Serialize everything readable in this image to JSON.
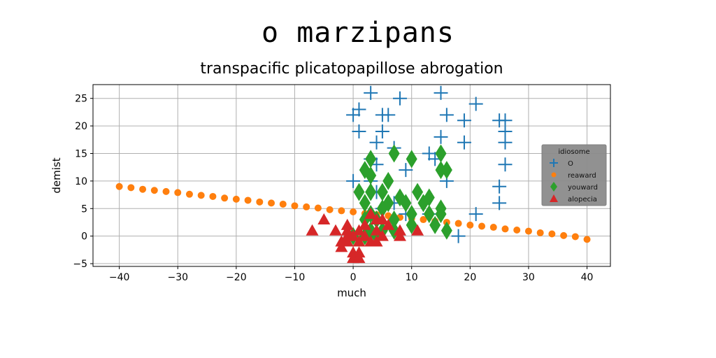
{
  "chart_data": {
    "type": "scatter",
    "suptitle": "o marzipans",
    "title": "transpacific plicatopapillose abrogation",
    "xlabel": "much",
    "ylabel": "demist",
    "xlim": [
      -44.5,
      44
    ],
    "ylim": [
      -5.5,
      27.5
    ],
    "xticks": [
      -40,
      -30,
      -20,
      -10,
      0,
      10,
      20,
      30,
      40
    ],
    "yticks": [
      -5,
      0,
      5,
      10,
      15,
      20,
      25
    ],
    "grid": true,
    "legend": {
      "title": "idiosome",
      "placement": "right"
    },
    "series": [
      {
        "name": "O",
        "marker": "plus",
        "color": "#1f77b4",
        "points": [
          [
            3,
            26
          ],
          [
            8,
            25
          ],
          [
            15,
            26
          ],
          [
            21,
            24
          ],
          [
            1,
            23
          ],
          [
            0,
            22
          ],
          [
            5,
            22
          ],
          [
            6,
            22
          ],
          [
            16,
            22
          ],
          [
            19,
            21
          ],
          [
            25,
            21
          ],
          [
            26,
            21
          ],
          [
            1,
            19
          ],
          [
            5,
            19
          ],
          [
            15,
            18
          ],
          [
            26,
            19
          ],
          [
            4,
            17
          ],
          [
            7,
            16
          ],
          [
            19,
            17
          ],
          [
            26,
            17
          ],
          [
            13,
            15
          ],
          [
            14,
            14
          ],
          [
            3,
            14
          ],
          [
            4,
            13
          ],
          [
            9,
            12
          ],
          [
            26,
            13
          ],
          [
            0,
            10
          ],
          [
            3,
            10
          ],
          [
            16,
            10
          ],
          [
            4,
            8
          ],
          [
            25,
            9
          ],
          [
            7,
            6
          ],
          [
            5,
            5
          ],
          [
            9,
            4
          ],
          [
            13,
            4
          ],
          [
            21,
            4
          ],
          [
            25,
            6
          ],
          [
            18,
            0
          ]
        ]
      },
      {
        "name": "reaward",
        "marker": "circle",
        "color": "#ff7f0e",
        "points": [
          [
            -40,
            9
          ],
          [
            -38,
            8.8
          ],
          [
            -36,
            8.5
          ],
          [
            -34,
            8.3
          ],
          [
            -32,
            8.1
          ],
          [
            -30,
            7.9
          ],
          [
            -28,
            7.6
          ],
          [
            -26,
            7.4
          ],
          [
            -24,
            7.2
          ],
          [
            -22,
            6.9
          ],
          [
            -20,
            6.7
          ],
          [
            -18,
            6.5
          ],
          [
            -16,
            6.2
          ],
          [
            -14,
            6
          ],
          [
            -12,
            5.8
          ],
          [
            -10,
            5.5
          ],
          [
            -8,
            5.3
          ],
          [
            -6,
            5.1
          ],
          [
            -4,
            4.8
          ],
          [
            -2,
            4.6
          ],
          [
            0,
            4.4
          ],
          [
            2,
            4.1
          ],
          [
            4,
            3.9
          ],
          [
            6,
            3.7
          ],
          [
            8,
            3.4
          ],
          [
            10,
            3.2
          ],
          [
            12,
            3
          ],
          [
            14,
            2.7
          ],
          [
            16,
            2.5
          ],
          [
            18,
            2.3
          ],
          [
            20,
            2
          ],
          [
            22,
            1.8
          ],
          [
            24,
            1.6
          ],
          [
            26,
            1.3
          ],
          [
            28,
            1.1
          ],
          [
            30,
            0.9
          ],
          [
            32,
            0.6
          ],
          [
            34,
            0.4
          ],
          [
            36,
            0.1
          ],
          [
            38,
            -0.1
          ],
          [
            40,
            -0.6
          ]
        ]
      },
      {
        "name": "youward",
        "marker": "diamond",
        "color": "#2ca02c",
        "points": [
          [
            3,
            14
          ],
          [
            7,
            15
          ],
          [
            10,
            14
          ],
          [
            15,
            15
          ],
          [
            15,
            12
          ],
          [
            16,
            12
          ],
          [
            2,
            12
          ],
          [
            3,
            11
          ],
          [
            6,
            10
          ],
          [
            1,
            8
          ],
          [
            3,
            8
          ],
          [
            5,
            8
          ],
          [
            8,
            7
          ],
          [
            11,
            8
          ],
          [
            13,
            7
          ],
          [
            2,
            6
          ],
          [
            6,
            6
          ],
          [
            9,
            6
          ],
          [
            12,
            6
          ],
          [
            15,
            5
          ],
          [
            3,
            4
          ],
          [
            5,
            5
          ],
          [
            10,
            4
          ],
          [
            13,
            4
          ],
          [
            15,
            4
          ],
          [
            2,
            3
          ],
          [
            4,
            3
          ],
          [
            7,
            3
          ],
          [
            10,
            2
          ],
          [
            14,
            2
          ],
          [
            3,
            1
          ],
          [
            5,
            1
          ],
          [
            7,
            1
          ],
          [
            16,
            1
          ],
          [
            0,
            0
          ],
          [
            2,
            0
          ],
          [
            4,
            0
          ]
        ]
      },
      {
        "name": "alopecia",
        "marker": "triangle",
        "color": "#d62728",
        "points": [
          [
            -5,
            3
          ],
          [
            -7,
            1
          ],
          [
            -3,
            1
          ],
          [
            -1,
            1
          ],
          [
            -1,
            2
          ],
          [
            1,
            1
          ],
          [
            2,
            2
          ],
          [
            3,
            4
          ],
          [
            4,
            3
          ],
          [
            5,
            3
          ],
          [
            6,
            2
          ],
          [
            8,
            1
          ],
          [
            -1,
            0
          ],
          [
            0,
            0
          ],
          [
            1,
            -1
          ],
          [
            2,
            0
          ],
          [
            4,
            1
          ],
          [
            5,
            0
          ],
          [
            4,
            -1
          ],
          [
            3,
            -1
          ],
          [
            -2,
            -2
          ],
          [
            -1,
            -1
          ],
          [
            -2,
            -1
          ],
          [
            0,
            -3
          ],
          [
            1,
            -3
          ],
          [
            0,
            -4
          ],
          [
            1,
            -4
          ],
          [
            8,
            0
          ],
          [
            11,
            1
          ]
        ]
      }
    ]
  }
}
